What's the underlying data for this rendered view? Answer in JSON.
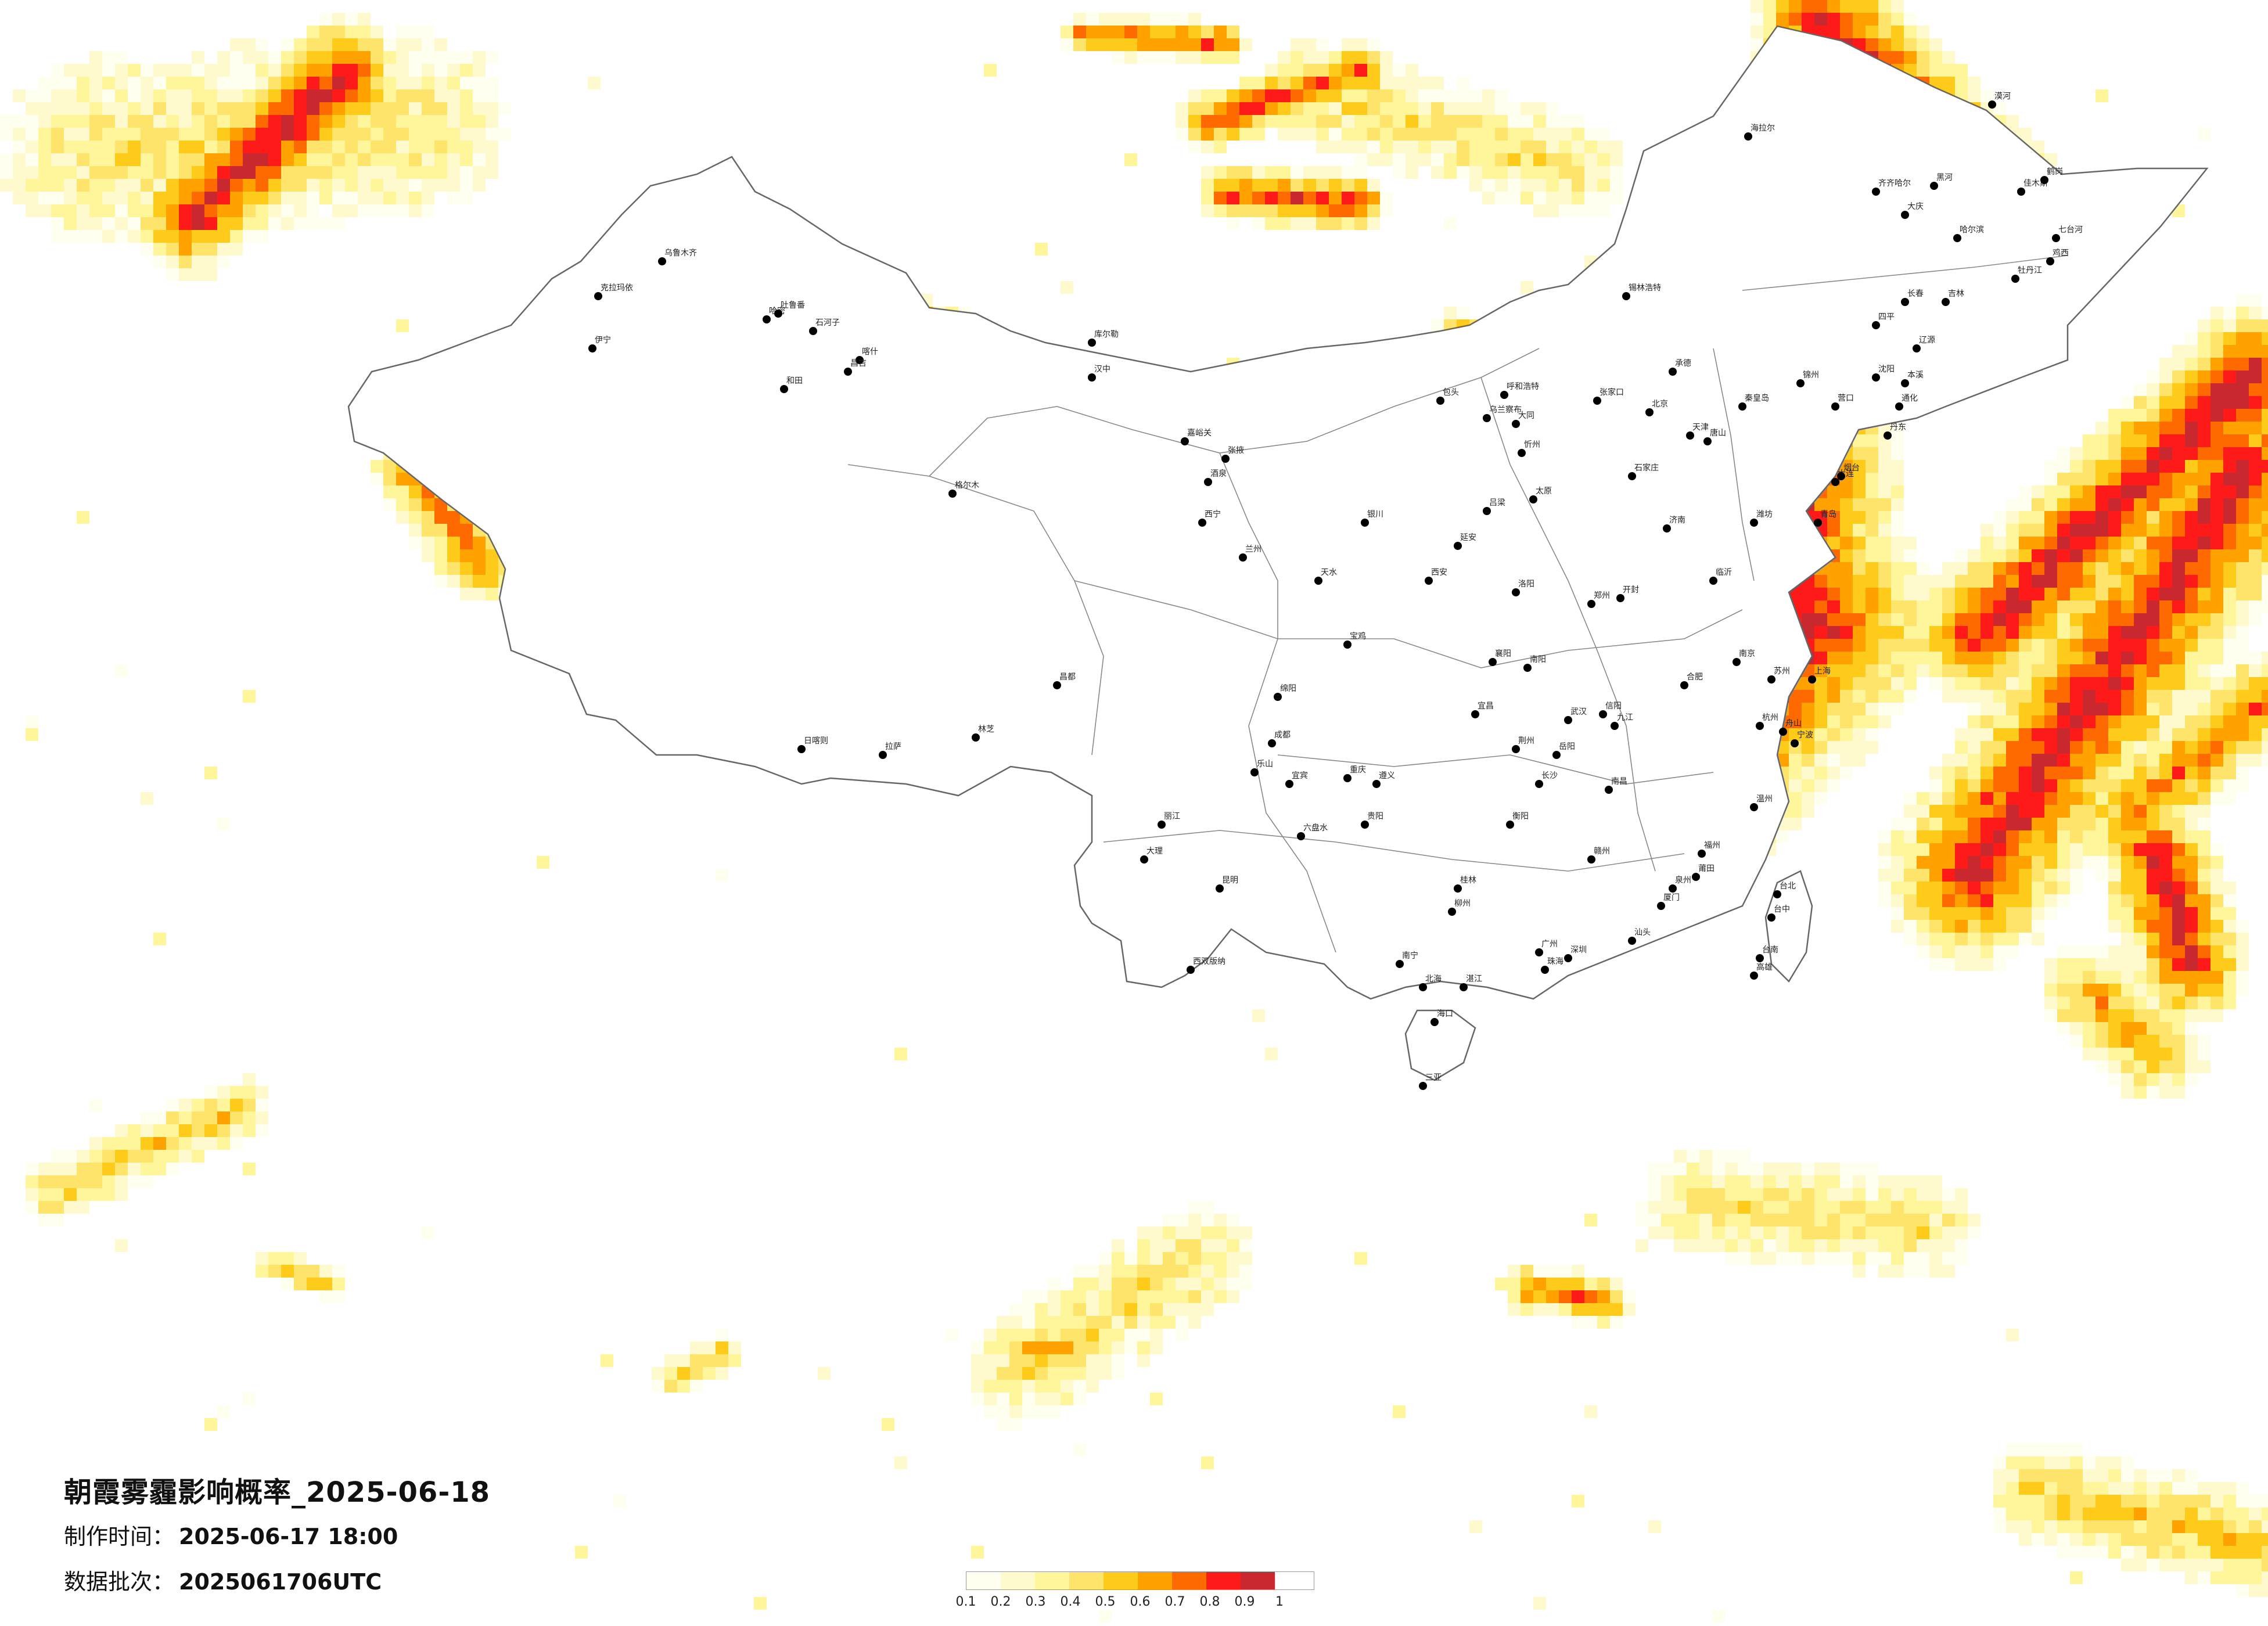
{
  "title": "朝霞雾霾影响概率_2025-06-18",
  "made_time": {
    "label": "制作时间：",
    "value": "2025-06-17 18:00"
  },
  "batch": {
    "label": "数据批次：",
    "value": "2025061706UTC"
  },
  "legend": {
    "colors": [
      "#fffff0",
      "#fffacd",
      "#fff59a",
      "#ffe46b",
      "#ffcb1a",
      "#ffa200",
      "#ff6a00",
      "#ff1a1a",
      "#c8282e"
    ],
    "ticks": [
      "0.1",
      "0.2",
      "0.3",
      "0.4",
      "0.5",
      "0.6",
      "0.7",
      "0.8",
      "0.9",
      "1"
    ]
  },
  "cities": [
    "海拉尔",
    "漠河",
    "黑河",
    "齐齐哈尔",
    "大庆",
    "哈尔滨",
    "佳木斯",
    "鹤岗",
    "七台河",
    "鸡西",
    "牡丹江",
    "长春",
    "吉林",
    "四平",
    "辽源",
    "通化",
    "沈阳",
    "本溪",
    "丹东",
    "大连",
    "锦州",
    "营口",
    "锡林浩特",
    "呼和浩特",
    "包头",
    "乌兰察布",
    "张家口",
    "北京",
    "天津",
    "唐山",
    "秦皇岛",
    "承德",
    "石家庄",
    "太原",
    "大同",
    "忻州",
    "吕梁",
    "济南",
    "青岛",
    "烟台",
    "潍坊",
    "临沂",
    "郑州",
    "洛阳",
    "开封",
    "南阳",
    "信阳",
    "合肥",
    "南京",
    "上海",
    "苏州",
    "杭州",
    "宁波",
    "温州",
    "舟山",
    "福州",
    "厦门",
    "泉州",
    "莆田",
    "南昌",
    "九江",
    "赣州",
    "武汉",
    "宜昌",
    "荆州",
    "襄阳",
    "长沙",
    "衡阳",
    "岳阳",
    "广州",
    "深圳",
    "珠海",
    "汕头",
    "湛江",
    "南宁",
    "桂林",
    "柳州",
    "北海",
    "海口",
    "三亚",
    "重庆",
    "成都",
    "绵阳",
    "乐山",
    "宜宾",
    "贵阳",
    "遵义",
    "六盘水",
    "昆明",
    "大理",
    "丽江",
    "西双版纳",
    "拉萨",
    "日喀则",
    "林芝",
    "昌都",
    "西宁",
    "格尔木",
    "兰州",
    "嘉峪关",
    "张掖",
    "酒泉",
    "天水",
    "银川",
    "西安",
    "延安",
    "宝鸡",
    "汉中",
    "乌鲁木齐",
    "克拉玛依",
    "伊宁",
    "喀什",
    "和田",
    "库尔勒",
    "哈密",
    "吐鲁番",
    "昌吉",
    "石河子",
    "台北",
    "台中",
    "高雄",
    "台南"
  ]
}
